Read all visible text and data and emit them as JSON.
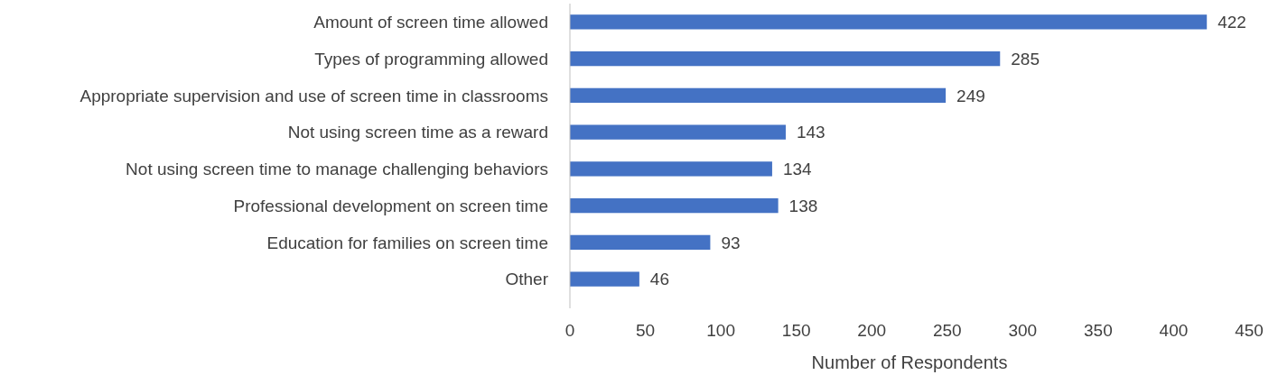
{
  "chart_data": {
    "type": "bar",
    "orientation": "horizontal",
    "xlabel": "Number of Respondents",
    "categories": [
      "Amount of screen time allowed",
      "Types of programming allowed",
      "Appropriate supervision and use of screen time in classrooms",
      "Not using screen time as a reward",
      "Not using screen time to manage challenging behaviors",
      "Professional development on screen time",
      "Education for families on screen time",
      "Other"
    ],
    "values": [
      422,
      285,
      249,
      143,
      134,
      138,
      93,
      46
    ],
    "color": "#4472c4",
    "xlim": [
      0,
      450
    ],
    "xticks": [
      0,
      50,
      100,
      150,
      200,
      250,
      300,
      350,
      400,
      450
    ],
    "grid": false,
    "data_labels": true
  }
}
